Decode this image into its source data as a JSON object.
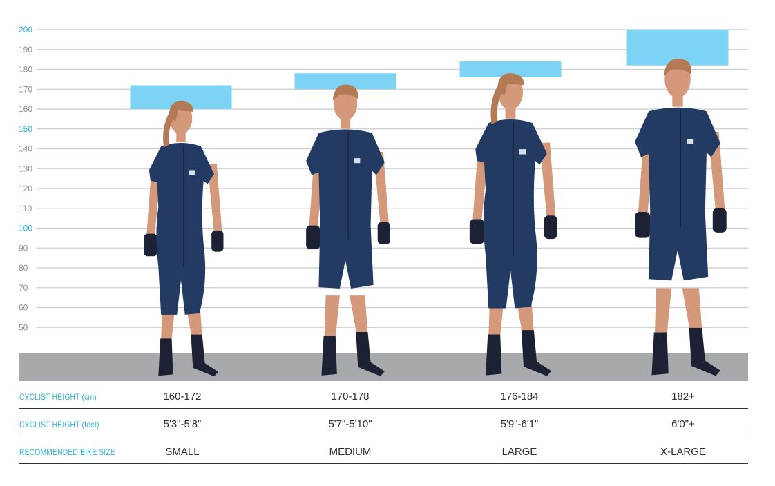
{
  "chart_data": {
    "type": "bar",
    "y_axis": {
      "ylim": [
        40,
        200
      ],
      "ticks": [
        50,
        60,
        70,
        80,
        90,
        100,
        110,
        120,
        130,
        140,
        150,
        160,
        170,
        180,
        190,
        200
      ],
      "accent_ticks": [
        100,
        150,
        200
      ]
    },
    "categories": [
      "SMALL",
      "MEDIUM",
      "LARGE",
      "X-LARGE"
    ],
    "height_ranges_cm": [
      [
        160,
        172
      ],
      [
        170,
        178
      ],
      [
        176,
        184
      ],
      [
        182,
        200
      ]
    ],
    "rows": [
      {
        "label": "CYCLIST HEIGHT (cm)",
        "values": [
          "160-172",
          "170-178",
          "176-184",
          "182+"
        ]
      },
      {
        "label": "CYCLIST HEIGHT (feet)",
        "values": [
          "5'3\"-5'8\"",
          "5'7\"-5'10\"",
          "5'9\"-6'1\"",
          "6'0\"+"
        ]
      },
      {
        "label": "RECOMMENDED BIKE SIZE",
        "values": [
          "SMALL",
          "MEDIUM",
          "LARGE",
          "X-LARGE"
        ]
      }
    ],
    "figures": [
      "female",
      "male",
      "female",
      "male"
    ]
  },
  "colors": {
    "range_bar": "#7dd3f3",
    "grid": "#c9cbce",
    "floor": "#a8a9ab",
    "suit": "#233b63",
    "skin": "#d4987a",
    "hair": "#b27a55",
    "accent_text": "#29b6e0"
  }
}
